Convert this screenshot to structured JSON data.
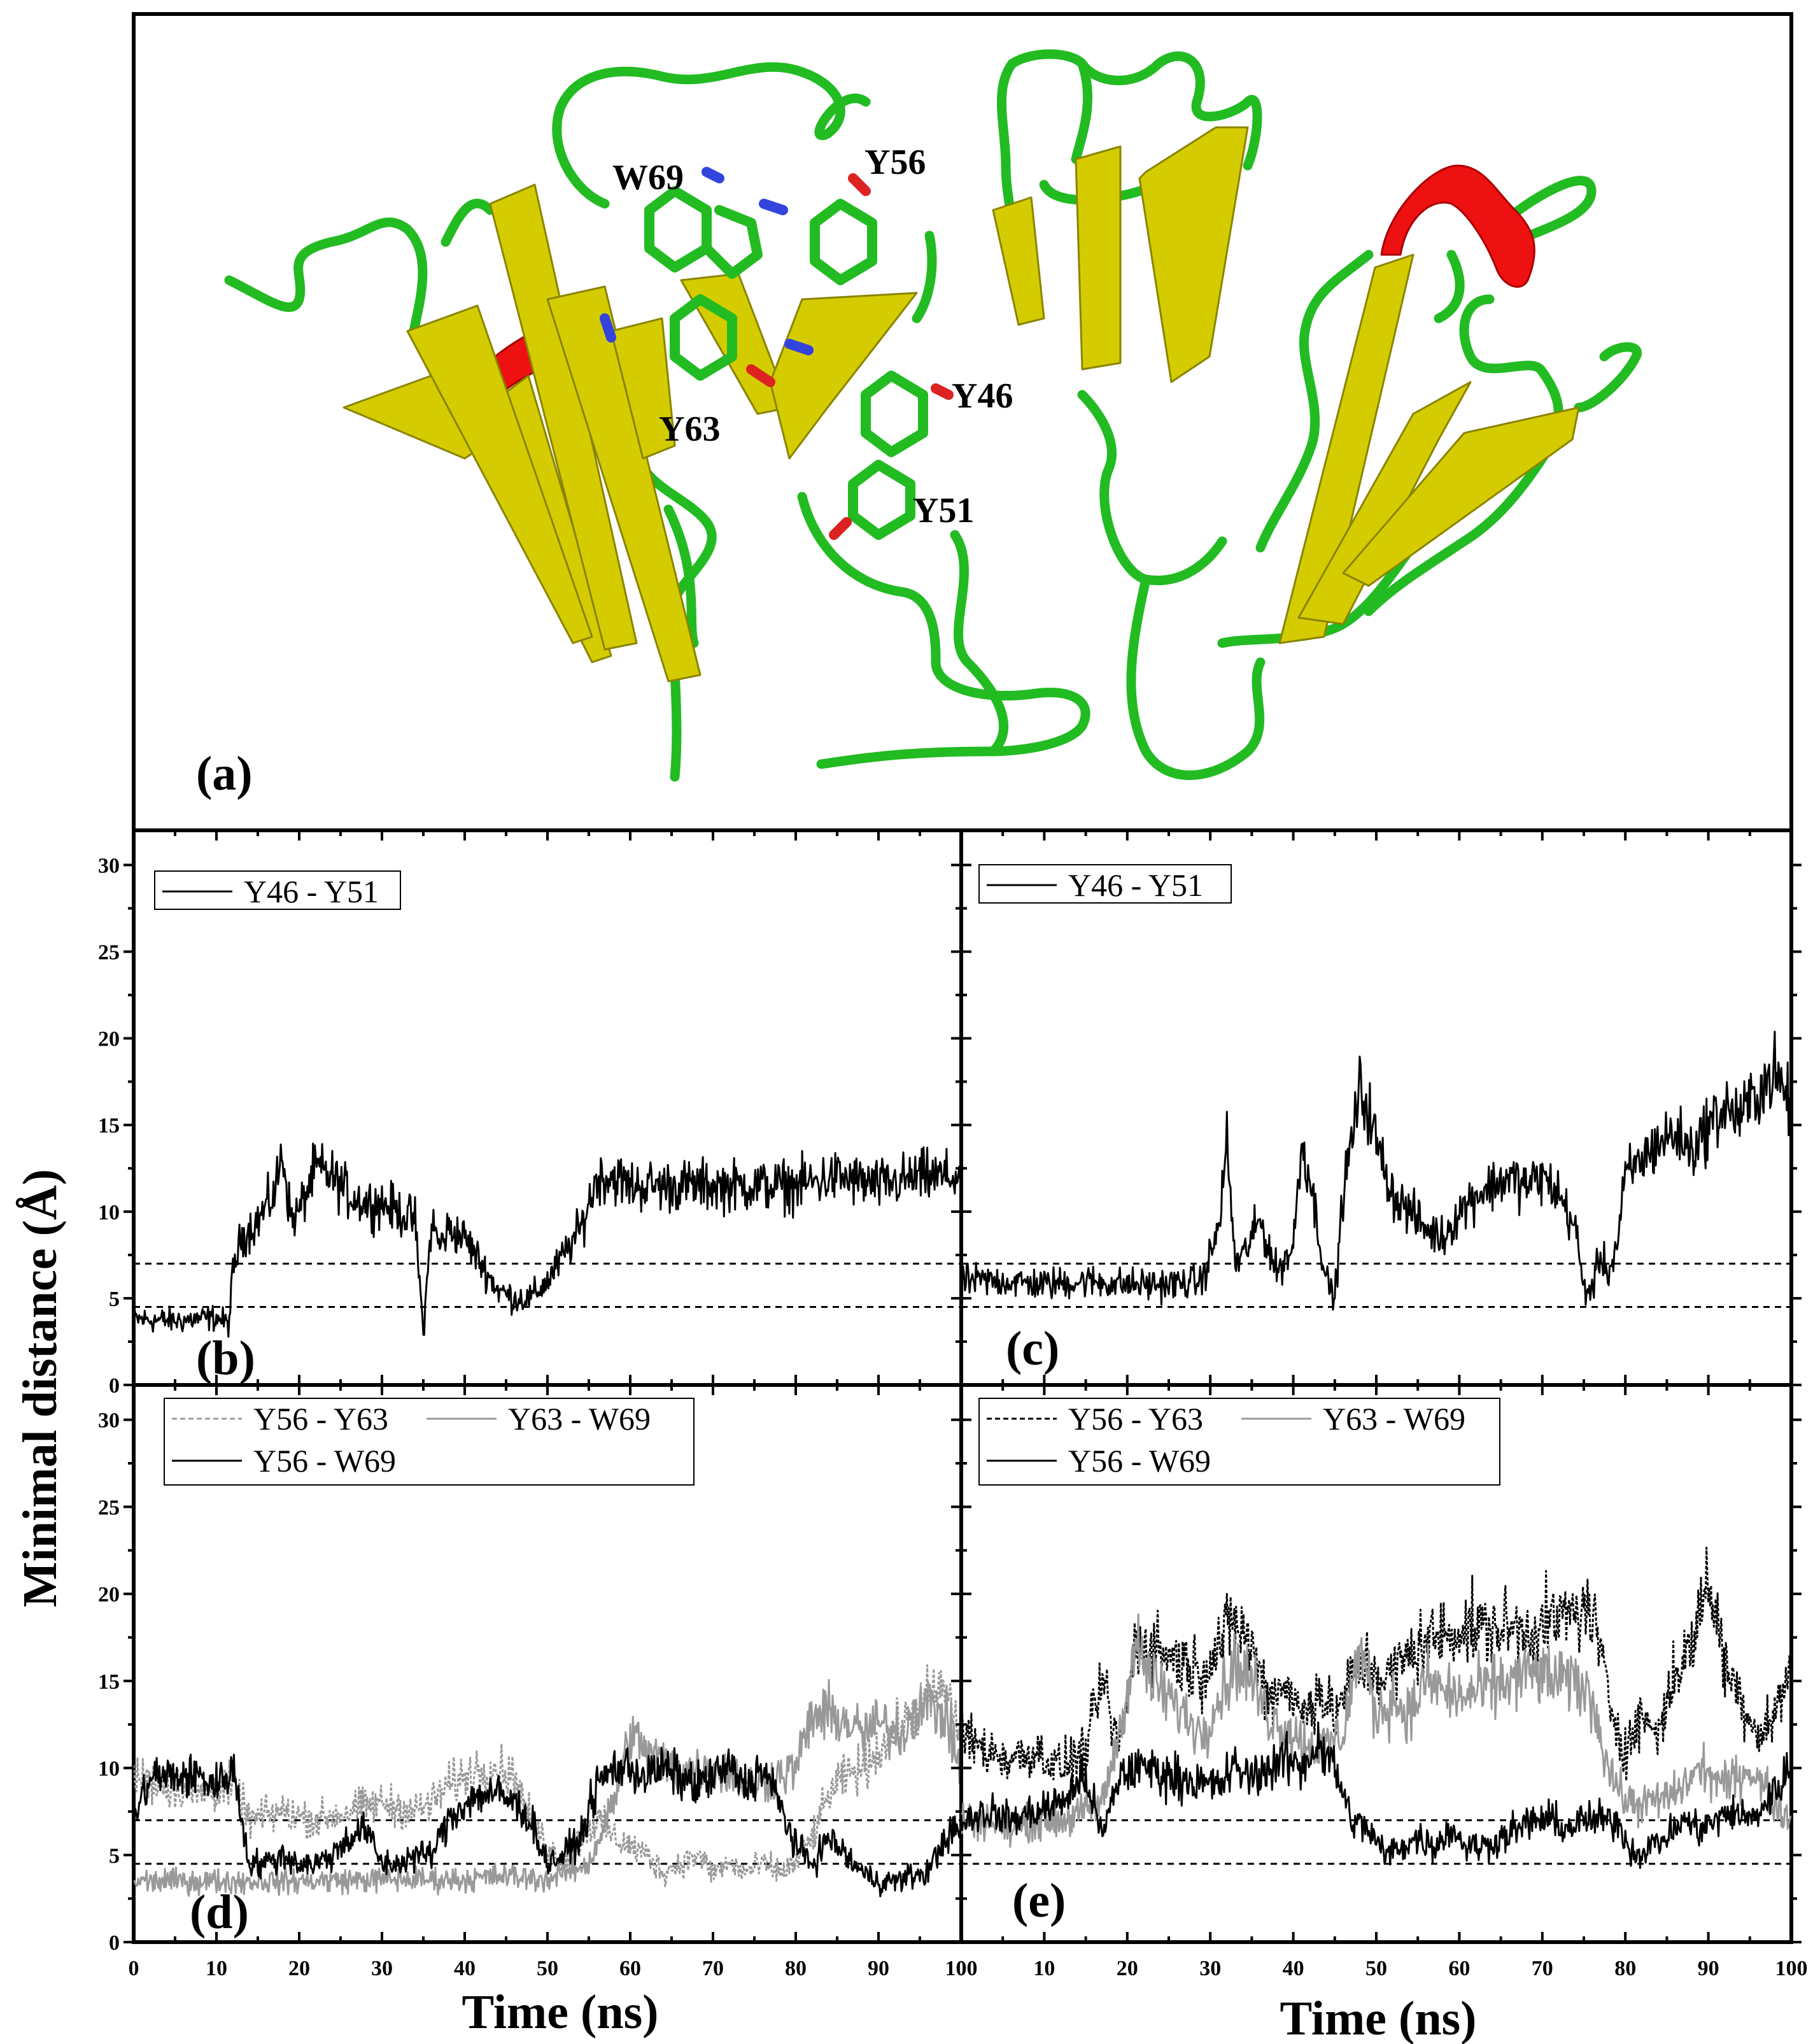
{
  "panel_a": {
    "label": "(a)",
    "residue_labels": [
      "W69",
      "Y56",
      "Y46",
      "Y63",
      "Y51"
    ],
    "colors": {
      "coil": "#22bb22",
      "sheet": "#d4cc00",
      "helix": "#ee1111"
    }
  },
  "chart_data": [
    {
      "panel": "(b)",
      "type": "line",
      "xlabel": "Time (ns)",
      "ylabel": "Minimal distance (Å)",
      "xlim": [
        0,
        100
      ],
      "ylim": [
        0,
        32
      ],
      "xticks": [
        0,
        10,
        20,
        30,
        40,
        50,
        60,
        70,
        80,
        90,
        100
      ],
      "yticks": [
        0,
        5,
        10,
        15,
        20,
        25,
        30
      ],
      "reference_lines": [
        4.5,
        7
      ],
      "legend": [
        "Y46 - Y51"
      ],
      "legend_position": "top-left",
      "series": [
        {
          "name": "Y46 - Y51",
          "style": "solid",
          "color": "#000000",
          "x": [
            0,
            5,
            10,
            11.5,
            12,
            13,
            15,
            17,
            18,
            19,
            20,
            22,
            24,
            26,
            28,
            30,
            32,
            34,
            35,
            36,
            37,
            38,
            40,
            42,
            44,
            46,
            48,
            50,
            52,
            54,
            56,
            58,
            60,
            65,
            70,
            75,
            80,
            85,
            90,
            95,
            100
          ],
          "values": [
            3.8,
            3.7,
            3.9,
            3.5,
            6.5,
            8.5,
            9.5,
            11,
            13.5,
            9.5,
            10,
            12.5,
            12,
            11,
            10.5,
            10.5,
            10,
            9.5,
            3,
            9.5,
            8,
            9,
            8.5,
            7,
            5.5,
            5,
            5,
            6,
            7.5,
            9,
            12,
            12,
            11.5,
            11.5,
            11.5,
            11.5,
            11.5,
            12,
            11.5,
            12,
            12
          ]
        }
      ]
    },
    {
      "panel": "(c)",
      "type": "line",
      "xlim": [
        0,
        100
      ],
      "ylim": [
        0,
        32
      ],
      "xticks": [
        0,
        10,
        20,
        30,
        40,
        50,
        60,
        70,
        80,
        90,
        100
      ],
      "yticks": [
        0,
        5,
        10,
        15,
        20,
        25,
        30
      ],
      "reference_lines": [
        4.5,
        7
      ],
      "legend": [
        "Y46 - Y51"
      ],
      "legend_position": "top-left",
      "series": [
        {
          "name": "Y46 - Y51",
          "style": "solid",
          "color": "#000000",
          "x": [
            0,
            5,
            10,
            15,
            20,
            25,
            29,
            31,
            32,
            33,
            34,
            36,
            38,
            40,
            41,
            42,
            43,
            44,
            45,
            46,
            47,
            48,
            49,
            50,
            52,
            54,
            56,
            58,
            60,
            62,
            64,
            66,
            68,
            70,
            72,
            74,
            75,
            76,
            77,
            78,
            79,
            80,
            82,
            84,
            86,
            88,
            90,
            92,
            94,
            96,
            98,
            100
          ],
          "values": [
            6,
            6,
            5.8,
            6,
            5.8,
            5.8,
            6,
            9,
            14,
            7,
            7.5,
            9.5,
            6.5,
            8,
            14,
            12,
            9,
            6,
            5,
            11,
            14,
            17,
            16,
            14,
            11,
            10,
            9,
            8.5,
            10,
            11,
            11.5,
            12,
            11.5,
            12,
            11,
            9,
            5.5,
            5.5,
            7.5,
            6.5,
            8,
            12,
            13,
            14,
            14.5,
            13.5,
            15,
            16,
            15.5,
            17,
            18,
            16
          ]
        }
      ]
    },
    {
      "panel": "(d)",
      "type": "line",
      "xlim": [
        0,
        100
      ],
      "ylim": [
        0,
        32
      ],
      "xticks": [
        0,
        10,
        20,
        30,
        40,
        50,
        60,
        70,
        80,
        90,
        100
      ],
      "yticks": [
        0,
        5,
        10,
        15,
        20,
        25,
        30
      ],
      "reference_lines": [
        4.5,
        7
      ],
      "legend": [
        "Y56 - Y63",
        "Y63 - W69",
        "Y56 - W69"
      ],
      "legend_position": "top-left",
      "series": [
        {
          "name": "Y56 - Y63",
          "style": "dashed",
          "color": "#999999",
          "x": [
            0,
            4,
            8,
            12,
            14,
            18,
            22,
            26,
            30,
            34,
            36,
            38,
            40,
            42,
            44,
            46,
            48,
            50,
            52,
            54,
            56,
            58,
            60,
            62,
            64,
            66,
            68,
            70,
            72,
            74,
            76,
            78,
            80,
            82,
            84,
            86,
            88,
            90,
            92,
            94,
            96,
            98,
            100
          ],
          "values": [
            9.5,
            9,
            8.5,
            9,
            7,
            7.5,
            7,
            7.5,
            8,
            7.5,
            8,
            9,
            9.5,
            10,
            10,
            9.5,
            7,
            5.5,
            4.5,
            6,
            7,
            6,
            5.5,
            5,
            4,
            4.5,
            5,
            4,
            4.5,
            4,
            4.5,
            4,
            4.5,
            6,
            8.5,
            9.5,
            10,
            11,
            12,
            13,
            14,
            14.5,
            12
          ]
        },
        {
          "name": "Y63 - W69",
          "style": "solid",
          "color": "#999999",
          "x": [
            0,
            10,
            20,
            30,
            40,
            45,
            50,
            55,
            58,
            60,
            62,
            65,
            70,
            75,
            80,
            82,
            85,
            88,
            90,
            93,
            95,
            98,
            100
          ],
          "values": [
            3.5,
            3.5,
            3.5,
            3.6,
            3.6,
            3.8,
            3.6,
            4.5,
            8,
            12,
            11,
            10,
            10,
            9,
            10,
            13,
            13,
            12,
            12.5,
            12,
            14,
            13,
            10
          ]
        },
        {
          "name": "Y56 - W69",
          "style": "solid",
          "color": "#000000",
          "x": [
            0,
            2,
            4,
            6,
            8,
            10,
            12,
            14,
            16,
            18,
            20,
            22,
            24,
            26,
            28,
            30,
            32,
            34,
            36,
            38,
            40,
            42,
            44,
            46,
            48,
            50,
            52,
            54,
            56,
            58,
            60,
            62,
            64,
            66,
            68,
            70,
            72,
            74,
            76,
            78,
            80,
            82,
            84,
            86,
            88,
            90,
            92,
            94,
            96,
            98,
            100
          ],
          "values": [
            7,
            9.5,
            9.5,
            9.5,
            9.5,
            9,
            10,
            4.5,
            4.5,
            5,
            4.5,
            4.5,
            5,
            6,
            6.5,
            4.5,
            4.5,
            5,
            5,
            7,
            8,
            8.5,
            8.5,
            8,
            7,
            4.5,
            5,
            6,
            9,
            10,
            10,
            9.5,
            10,
            9.5,
            9,
            9.5,
            10,
            9,
            10,
            8,
            5.5,
            4.5,
            6,
            5,
            4,
            3.5,
            3.5,
            3.8,
            4,
            6,
            6.5
          ]
        }
      ]
    },
    {
      "panel": "(e)",
      "type": "line",
      "xlim": [
        0,
        100
      ],
      "ylim": [
        0,
        32
      ],
      "xticks": [
        0,
        10,
        20,
        30,
        40,
        50,
        60,
        70,
        80,
        90,
        100
      ],
      "yticks": [
        0,
        5,
        10,
        15,
        20,
        25,
        30
      ],
      "reference_lines": [
        4.5,
        7
      ],
      "legend": [
        "Y56 - Y63",
        "Y63 - W69",
        "Y56 - W69"
      ],
      "legend_position": "top-left",
      "series": [
        {
          "name": "Y56 - Y63",
          "style": "dashed",
          "color": "#000000",
          "x": [
            0,
            3,
            6,
            9,
            12,
            15,
            17,
            19,
            21,
            23,
            25,
            27,
            29,
            31,
            33,
            35,
            37,
            39,
            41,
            43,
            45,
            47,
            49,
            51,
            53,
            55,
            57,
            60,
            63,
            66,
            69,
            72,
            74,
            76,
            78,
            80,
            82,
            84,
            86,
            88,
            90,
            92,
            94,
            96,
            98,
            100
          ],
          "values": [
            12,
            11,
            10.5,
            11,
            10,
            11,
            15,
            11,
            17,
            17,
            16.5,
            16,
            15.5,
            17,
            18.5,
            17,
            14,
            15,
            13,
            14.5,
            13,
            15,
            16,
            15,
            16,
            17,
            17.5,
            18,
            18,
            18,
            18,
            18.5,
            19,
            19,
            14,
            11,
            13,
            12,
            15.5,
            17,
            21,
            16,
            14,
            12,
            13,
            16
          ]
        },
        {
          "name": "Y63 - W69",
          "style": "solid",
          "color": "#999999",
          "x": [
            0,
            3,
            6,
            9,
            12,
            15,
            17,
            19,
            21,
            23,
            25,
            27,
            29,
            31,
            33,
            35,
            37,
            40,
            43,
            46,
            48,
            50,
            52,
            54,
            56,
            58,
            60,
            63,
            66,
            69,
            72,
            74,
            76,
            78,
            80,
            83,
            86,
            89,
            92,
            95,
            98,
            100
          ],
          "values": [
            7,
            7,
            6.5,
            7,
            7,
            7.5,
            8,
            12,
            17,
            15,
            14,
            13,
            12,
            14,
            16,
            15,
            13,
            12,
            11,
            12,
            17,
            13,
            14,
            13,
            15,
            14.5,
            14,
            14.5,
            15,
            15.5,
            15,
            15,
            14,
            10,
            8,
            8,
            8.5,
            10,
            9,
            10,
            8,
            7
          ]
        },
        {
          "name": "Y56 - W69",
          "style": "solid",
          "color": "#000000",
          "x": [
            0,
            3,
            6,
            9,
            12,
            15,
            17,
            19,
            21,
            23,
            25,
            27,
            29,
            31,
            33,
            35,
            37,
            39,
            41,
            43,
            45,
            47,
            49,
            51,
            53,
            55,
            57,
            59,
            61,
            63,
            65,
            67,
            69,
            71,
            73,
            75,
            77,
            79,
            81,
            83,
            85,
            87,
            89,
            91,
            93,
            95,
            97,
            100
          ],
          "values": [
            7,
            7.5,
            7,
            7.5,
            8,
            9.5,
            6,
            9.5,
            10,
            10,
            9.5,
            9.5,
            9,
            9,
            10,
            9.5,
            10,
            10.5,
            10,
            11.5,
            10,
            7,
            6.5,
            5,
            5.5,
            6,
            5.5,
            6.5,
            5.5,
            5.5,
            6,
            6.5,
            7,
            7,
            6.5,
            7,
            7,
            7,
            5,
            5.5,
            6,
            7,
            6.5,
            7,
            7.5,
            7,
            8,
            10
          ]
        }
      ]
    }
  ]
}
